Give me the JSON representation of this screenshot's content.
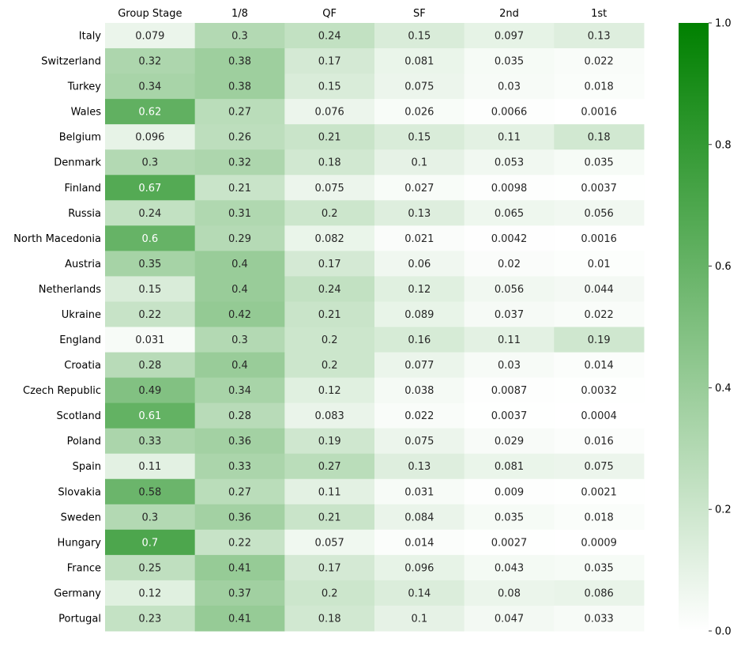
{
  "chart_data": {
    "type": "heatmap",
    "title": "",
    "xlabel": "",
    "ylabel": "",
    "columns": [
      "Group Stage",
      "1/8",
      "QF",
      "SF",
      "2nd",
      "1st"
    ],
    "rows": [
      "Italy",
      "Switzerland",
      "Turkey",
      "Wales",
      "Belgium",
      "Denmark",
      "Finland",
      "Russia",
      "North Macedonia",
      "Austria",
      "Netherlands",
      "Ukraine",
      "England",
      "Croatia",
      "Czech Republic",
      "Scotland",
      "Poland",
      "Spain",
      "Slovakia",
      "Sweden",
      "Hungary",
      "France",
      "Germany",
      "Portugal"
    ],
    "values": [
      [
        "0.079",
        "0.3",
        "0.24",
        "0.15",
        "0.097",
        "0.13"
      ],
      [
        "0.32",
        "0.38",
        "0.17",
        "0.081",
        "0.035",
        "0.022"
      ],
      [
        "0.34",
        "0.38",
        "0.15",
        "0.075",
        "0.03",
        "0.018"
      ],
      [
        "0.62",
        "0.27",
        "0.076",
        "0.026",
        "0.0066",
        "0.0016"
      ],
      [
        "0.096",
        "0.26",
        "0.21",
        "0.15",
        "0.11",
        "0.18"
      ],
      [
        "0.3",
        "0.32",
        "0.18",
        "0.1",
        "0.053",
        "0.035"
      ],
      [
        "0.67",
        "0.21",
        "0.075",
        "0.027",
        "0.0098",
        "0.0037"
      ],
      [
        "0.24",
        "0.31",
        "0.2",
        "0.13",
        "0.065",
        "0.056"
      ],
      [
        "0.6",
        "0.29",
        "0.082",
        "0.021",
        "0.0042",
        "0.0016"
      ],
      [
        "0.35",
        "0.4",
        "0.17",
        "0.06",
        "0.02",
        "0.01"
      ],
      [
        "0.15",
        "0.4",
        "0.24",
        "0.12",
        "0.056",
        "0.044"
      ],
      [
        "0.22",
        "0.42",
        "0.21",
        "0.089",
        "0.037",
        "0.022"
      ],
      [
        "0.031",
        "0.3",
        "0.2",
        "0.16",
        "0.11",
        "0.19"
      ],
      [
        "0.28",
        "0.4",
        "0.2",
        "0.077",
        "0.03",
        "0.014"
      ],
      [
        "0.49",
        "0.34",
        "0.12",
        "0.038",
        "0.0087",
        "0.0032"
      ],
      [
        "0.61",
        "0.28",
        "0.083",
        "0.022",
        "0.0037",
        "0.0004"
      ],
      [
        "0.33",
        "0.36",
        "0.19",
        "0.075",
        "0.029",
        "0.016"
      ],
      [
        "0.11",
        "0.33",
        "0.27",
        "0.13",
        "0.081",
        "0.075"
      ],
      [
        "0.58",
        "0.27",
        "0.11",
        "0.031",
        "0.009",
        "0.0021"
      ],
      [
        "0.3",
        "0.36",
        "0.21",
        "0.084",
        "0.035",
        "0.018"
      ],
      [
        "0.7",
        "0.22",
        "0.057",
        "0.014",
        "0.0027",
        "0.0009"
      ],
      [
        "0.25",
        "0.41",
        "0.17",
        "0.096",
        "0.043",
        "0.035"
      ],
      [
        "0.12",
        "0.37",
        "0.2",
        "0.14",
        "0.08",
        "0.086"
      ],
      [
        "0.23",
        "0.41",
        "0.18",
        "0.1",
        "0.047",
        "0.033"
      ]
    ],
    "colorbar": {
      "min": 0.0,
      "max": 1.0,
      "ticks": [
        "0.0",
        "0.2",
        "0.4",
        "0.6",
        "0.8",
        "1.0"
      ],
      "color_low": "#ffffff",
      "color_high": "#008000"
    },
    "column_labels_position": "top",
    "legend": "colorbar-right",
    "grid": false
  }
}
